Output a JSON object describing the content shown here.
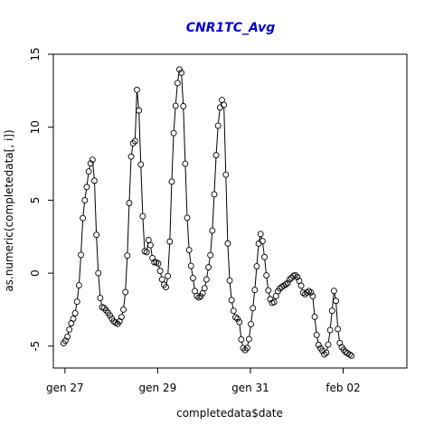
{
  "chart_data": {
    "type": "line",
    "title": "CNR1TC_Avg",
    "xlabel": "completedata$date",
    "ylabel": "as.numeric(completedata[, i])",
    "x_ticks": [
      "gen 27",
      "gen 29",
      "gen 31",
      "feb 02"
    ],
    "x_range": [
      "gen 26 18:00",
      "feb 03 09:00"
    ],
    "xlim": [
      -0.25,
      7.375
    ],
    "ylim": [
      -6.5,
      15
    ],
    "y_ticks": [
      -5,
      0,
      5,
      10,
      15
    ],
    "grid": false,
    "legend": "none",
    "marker": "open-circle",
    "colors": {
      "title": "#0000cd",
      "series": "#000000",
      "frame": "#000000"
    },
    "series": [
      {
        "name": "",
        "anchors": [
          [
            -0.03,
            -4.8
          ],
          [
            0.0,
            -4.7
          ],
          [
            0.05,
            -4.4
          ],
          [
            0.1,
            -3.8
          ],
          [
            0.15,
            -3.3
          ],
          [
            0.2,
            -3.0
          ],
          [
            0.24,
            -2.5
          ],
          [
            0.3,
            -1.0
          ],
          [
            0.35,
            1.5
          ],
          [
            0.4,
            4.6
          ],
          [
            0.45,
            5.3
          ],
          [
            0.5,
            6.8
          ],
          [
            0.55,
            7.5
          ],
          [
            0.6,
            7.8
          ],
          [
            0.63,
            7.0
          ],
          [
            0.66,
            4.0
          ],
          [
            0.7,
            1.0
          ],
          [
            0.74,
            -1.0
          ],
          [
            0.78,
            -2.3
          ],
          [
            0.85,
            -2.4
          ],
          [
            0.95,
            -2.8
          ],
          [
            1.05,
            -3.3
          ],
          [
            1.15,
            -3.5
          ],
          [
            1.25,
            -2.8
          ],
          [
            1.3,
            -1.5
          ],
          [
            1.35,
            1.5
          ],
          [
            1.4,
            6.0
          ],
          [
            1.45,
            9.5
          ],
          [
            1.5,
            8.0
          ],
          [
            1.55,
            12.5
          ],
          [
            1.58,
            13.1
          ],
          [
            1.6,
            10.5
          ],
          [
            1.63,
            8.0
          ],
          [
            1.66,
            5.5
          ],
          [
            1.7,
            2.0
          ],
          [
            1.74,
            1.0
          ],
          [
            1.78,
            1.8
          ],
          [
            1.82,
            2.6
          ],
          [
            1.86,
            1.5
          ],
          [
            1.9,
            0.8
          ],
          [
            1.95,
            0.7
          ],
          [
            2.0,
            0.8
          ],
          [
            2.05,
            0.2
          ],
          [
            2.1,
            -0.5
          ],
          [
            2.15,
            -0.9
          ],
          [
            2.2,
            -1.0
          ],
          [
            2.25,
            1.0
          ],
          [
            2.3,
            6.0
          ],
          [
            2.35,
            10.0
          ],
          [
            2.4,
            12.0
          ],
          [
            2.45,
            13.8
          ],
          [
            2.5,
            14.2
          ],
          [
            2.53,
            13.0
          ],
          [
            2.56,
            11.0
          ],
          [
            2.6,
            7.0
          ],
          [
            2.64,
            3.5
          ],
          [
            2.68,
            1.5
          ],
          [
            2.72,
            0.5
          ],
          [
            2.76,
            -0.3
          ],
          [
            2.8,
            -1.2
          ],
          [
            2.85,
            -1.6
          ],
          [
            2.9,
            -1.7
          ],
          [
            2.95,
            -1.5
          ],
          [
            3.0,
            -1.2
          ],
          [
            3.05,
            -0.5
          ],
          [
            3.1,
            0.5
          ],
          [
            3.15,
            1.5
          ],
          [
            3.2,
            4.0
          ],
          [
            3.25,
            7.5
          ],
          [
            3.3,
            10.0
          ],
          [
            3.35,
            11.5
          ],
          [
            3.4,
            12.0
          ],
          [
            3.43,
            11.5
          ],
          [
            3.46,
            8.0
          ],
          [
            3.5,
            3.0
          ],
          [
            3.53,
            0.5
          ],
          [
            3.56,
            -0.8
          ],
          [
            3.6,
            -2.0
          ],
          [
            3.65,
            -2.8
          ],
          [
            3.7,
            -3.2
          ],
          [
            3.75,
            -3.0
          ],
          [
            3.8,
            -4.5
          ],
          [
            3.85,
            -5.2
          ],
          [
            3.9,
            -5.3
          ],
          [
            3.95,
            -5.0
          ],
          [
            4.0,
            -3.8
          ],
          [
            4.05,
            -2.5
          ],
          [
            4.1,
            -1.0
          ],
          [
            4.15,
            1.0
          ],
          [
            4.2,
            2.8
          ],
          [
            4.25,
            2.5
          ],
          [
            4.3,
            1.2
          ],
          [
            4.35,
            -0.3
          ],
          [
            4.4,
            -1.5
          ],
          [
            4.45,
            -2.0
          ],
          [
            4.5,
            -2.1
          ],
          [
            4.55,
            -1.6
          ],
          [
            4.6,
            -1.2
          ],
          [
            4.65,
            -1.0
          ],
          [
            4.7,
            -0.9
          ],
          [
            4.75,
            -0.8
          ],
          [
            4.8,
            -0.7
          ],
          [
            4.85,
            -0.4
          ],
          [
            4.9,
            -0.3
          ],
          [
            4.95,
            -0.1
          ],
          [
            5.0,
            -0.2
          ],
          [
            5.05,
            -0.5
          ],
          [
            5.1,
            -0.9
          ],
          [
            5.15,
            -1.5
          ],
          [
            5.2,
            -1.4
          ],
          [
            5.25,
            -1.2
          ],
          [
            5.3,
            -1.3
          ],
          [
            5.35,
            -1.6
          ],
          [
            5.4,
            -3.5
          ],
          [
            5.45,
            -4.8
          ],
          [
            5.5,
            -5.1
          ],
          [
            5.55,
            -5.3
          ],
          [
            5.6,
            -5.6
          ],
          [
            5.65,
            -5.4
          ],
          [
            5.7,
            -4.5
          ],
          [
            5.75,
            -3.0
          ],
          [
            5.8,
            -1.2
          ],
          [
            5.83,
            -1.3
          ],
          [
            5.86,
            -2.5
          ],
          [
            5.9,
            -4.5
          ],
          [
            5.95,
            -5.0
          ],
          [
            6.0,
            -5.2
          ],
          [
            6.05,
            -5.4
          ],
          [
            6.1,
            -5.5
          ],
          [
            6.15,
            -5.6
          ],
          [
            6.2,
            -5.7
          ]
        ],
        "points_per_day": 24
      }
    ]
  }
}
